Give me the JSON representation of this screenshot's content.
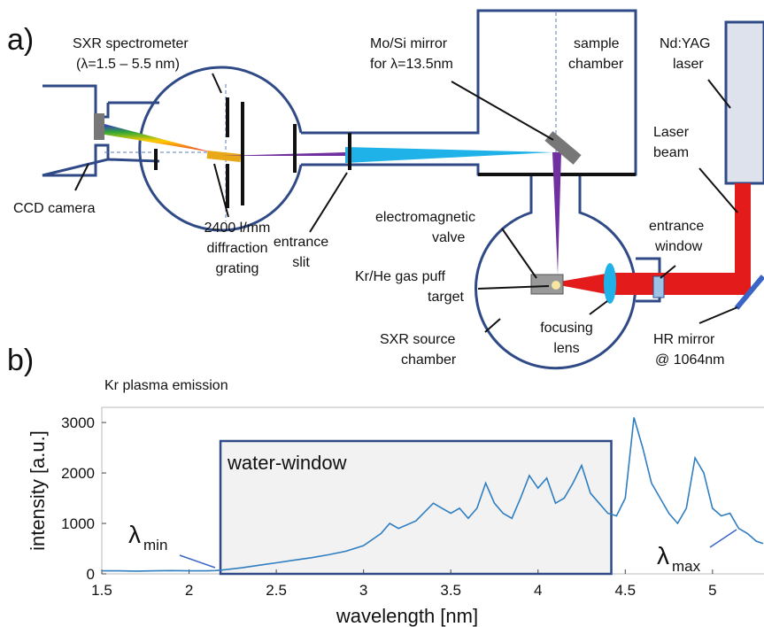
{
  "diagram": {
    "panel_a": "a)",
    "panel_b": "b)",
    "labels": {
      "spectrometer": [
        "SXR spectrometer",
        "(λ=1.5 – 5.5 nm)"
      ],
      "ccd": [
        "CCD camera"
      ],
      "grating": [
        "2400 l/mm",
        "diffraction",
        "grating"
      ],
      "slit": [
        "entrance",
        "slit"
      ],
      "mirror": [
        "Mo/Si mirror",
        "for λ=13.5nm"
      ],
      "sample": [
        "sample",
        "chamber"
      ],
      "laser": [
        "Nd:YAG",
        "laser"
      ],
      "beam": [
        "Laser",
        "beam"
      ],
      "valve": [
        "electromagnetic",
        "valve"
      ],
      "target": [
        "Kr/He gas puff",
        "target"
      ],
      "window": [
        "entrance",
        "window"
      ],
      "source": [
        "SXR source",
        "chamber"
      ],
      "lens": [
        "focusing",
        "lens"
      ],
      "hr": [
        "HR mirror",
        "@ 1064nm"
      ]
    }
  },
  "chart_data": {
    "type": "line",
    "title": "Kr plasma emission",
    "x_label": "wavelength [nm]",
    "y_label": "intensity [a.u.]",
    "xlim": [
      1.5,
      5.29
    ],
    "ylim": [
      0,
      3300
    ],
    "xticks": [
      1.5,
      2,
      2.5,
      3,
      3.5,
      4,
      4.5,
      5
    ],
    "yticks": [
      0,
      1000,
      2000,
      3000
    ],
    "region": {
      "label": "water-window",
      "x": [
        2.18,
        4.42
      ]
    },
    "annotations": [
      {
        "text": "λ",
        "sub": "min",
        "x": 2.17
      },
      {
        "text": "λ",
        "sub": "max",
        "x": 5.12
      }
    ],
    "series": [
      {
        "color": "#2e7ec1",
        "x": [
          1.5,
          1.6,
          1.7,
          1.8,
          1.9,
          2.0,
          2.1,
          2.15,
          2.2,
          2.3,
          2.4,
          2.5,
          2.6,
          2.7,
          2.8,
          2.9,
          3.0,
          3.1,
          3.15,
          3.2,
          3.3,
          3.4,
          3.45,
          3.5,
          3.55,
          3.6,
          3.65,
          3.7,
          3.75,
          3.8,
          3.85,
          3.9,
          3.95,
          4.0,
          4.05,
          4.1,
          4.15,
          4.2,
          4.25,
          4.3,
          4.35,
          4.4,
          4.45,
          4.5,
          4.55,
          4.6,
          4.65,
          4.7,
          4.75,
          4.8,
          4.85,
          4.9,
          4.95,
          5.0,
          5.05,
          5.1,
          5.15,
          5.2,
          5.25,
          5.29
        ],
        "values": [
          60,
          60,
          55,
          60,
          65,
          60,
          60,
          65,
          80,
          120,
          170,
          220,
          270,
          320,
          380,
          450,
          560,
          800,
          1000,
          900,
          1050,
          1400,
          1300,
          1200,
          1300,
          1100,
          1300,
          1800,
          1400,
          1200,
          1100,
          1500,
          1950,
          1700,
          1900,
          1400,
          1500,
          1800,
          2150,
          1600,
          1400,
          1200,
          1150,
          1500,
          3100,
          2500,
          1800,
          1500,
          1200,
          1000,
          1300,
          2300,
          2000,
          1300,
          1150,
          1200,
          900,
          800,
          650,
          600
        ]
      }
    ]
  }
}
